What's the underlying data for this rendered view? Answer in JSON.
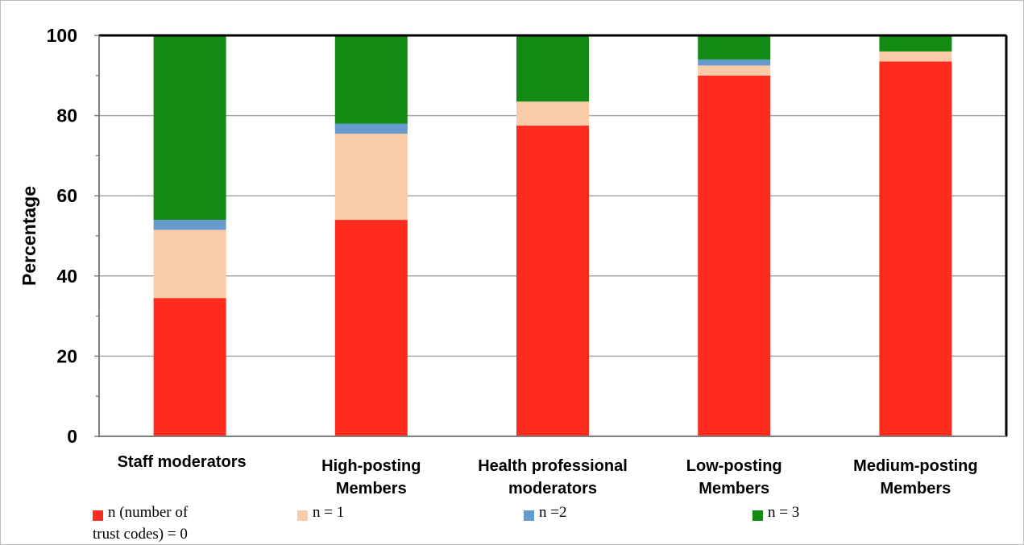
{
  "chart_data": {
    "type": "bar",
    "stacked": true,
    "ylabel": "Percentage",
    "xlabel": "",
    "ylim": [
      0,
      100
    ],
    "yticks": [
      0,
      20,
      40,
      60,
      80,
      100
    ],
    "grid": true,
    "legend_position": "bottom",
    "categories": [
      [
        "Staff moderators"
      ],
      [
        "High-posting",
        "Members"
      ],
      [
        "Health professional",
        "moderators"
      ],
      [
        "Low-posting",
        "Members"
      ],
      [
        "Medium-posting",
        "Members"
      ]
    ],
    "series": [
      {
        "name": [
          "n (number of",
          "trust codes) = 0"
        ],
        "color": "#ff2b1f",
        "values": [
          34.5,
          54,
          77.5,
          90,
          93.5
        ]
      },
      {
        "name": [
          "n = 1"
        ],
        "color": "#f9cba7",
        "values": [
          17,
          21.5,
          6,
          2.5,
          2.5
        ]
      },
      {
        "name": [
          "n =2"
        ],
        "color": "#6699cc",
        "values": [
          2.5,
          2.5,
          0,
          1.5,
          0
        ]
      },
      {
        "name": [
          "n = 3"
        ],
        "color": "#138a13",
        "values": [
          46,
          22,
          16.5,
          6,
          4
        ]
      }
    ]
  }
}
